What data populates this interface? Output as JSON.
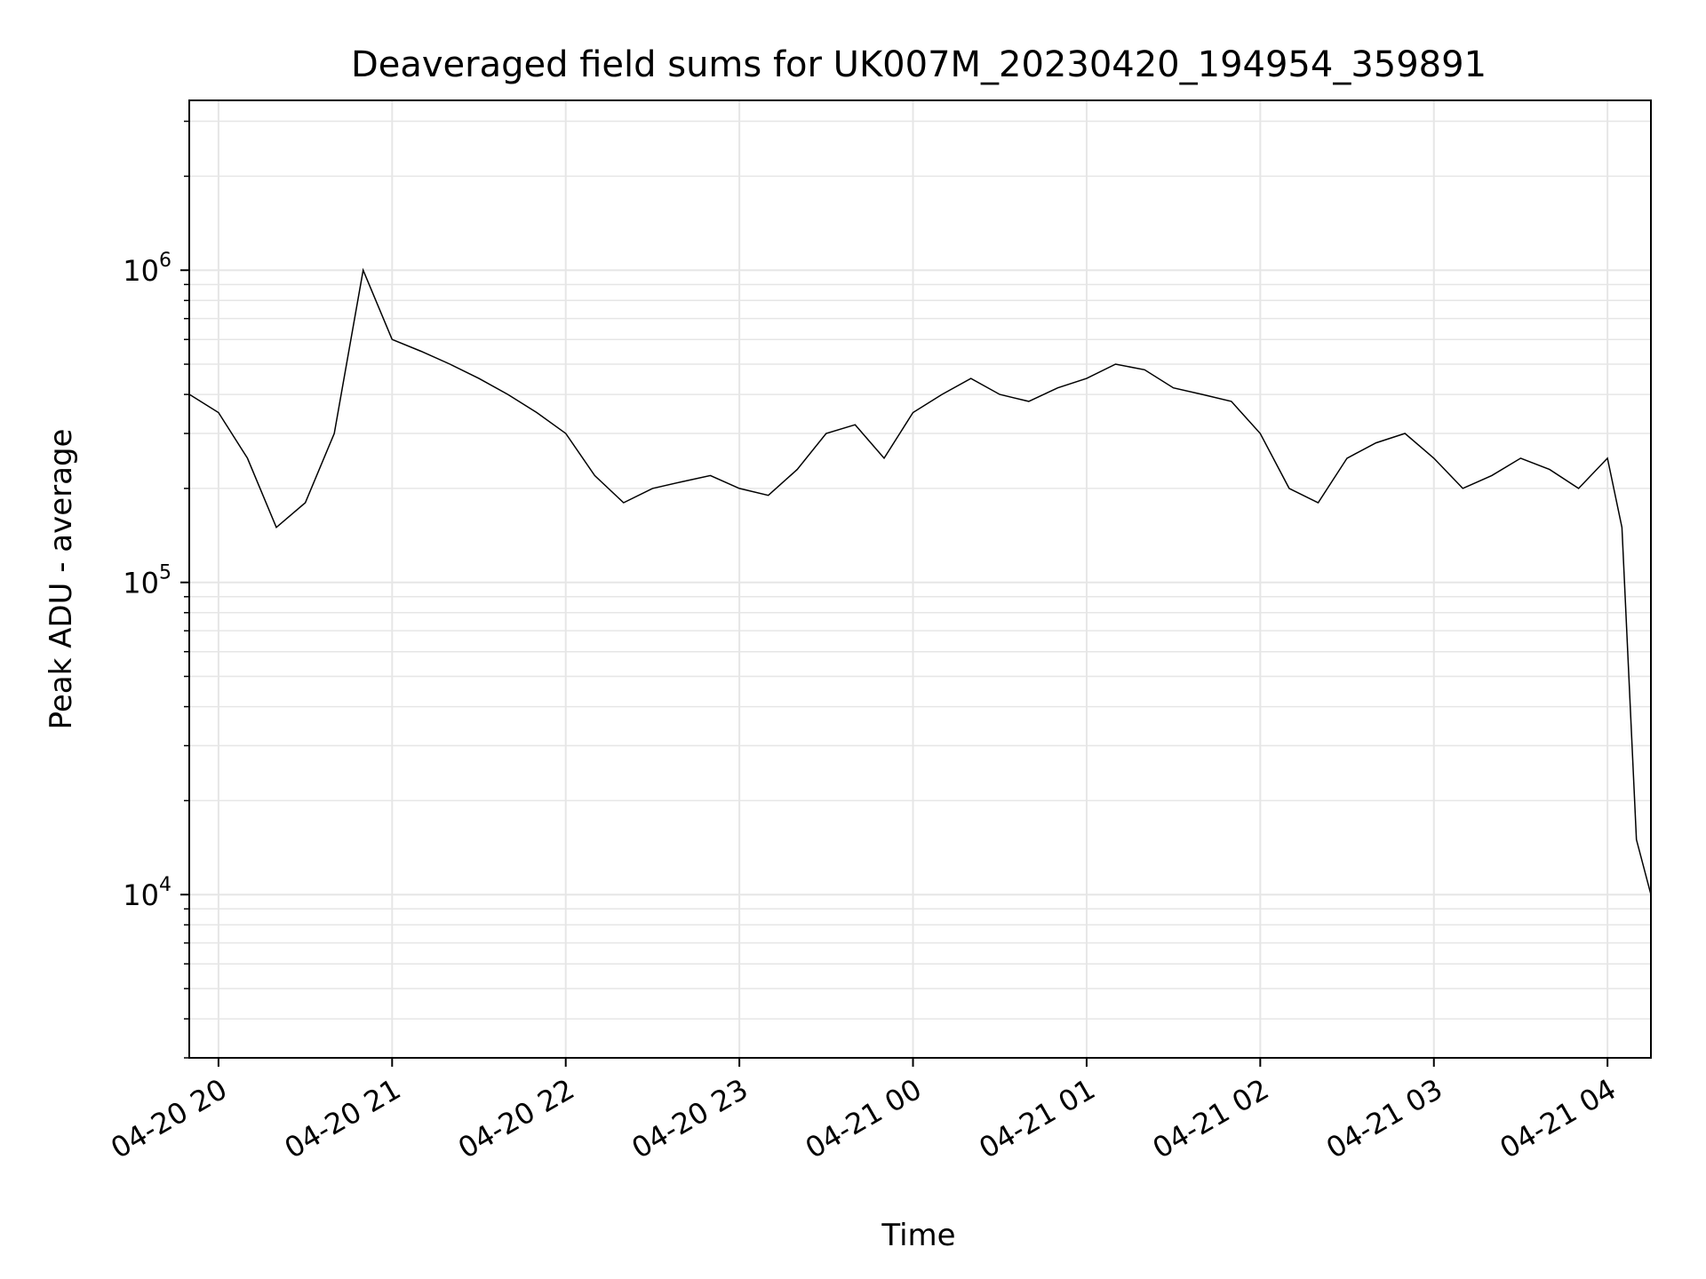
{
  "chart_data": {
    "type": "line",
    "title": "Deaveraged field sums for UK007M_20230420_194954_359891",
    "xlabel": "Time",
    "ylabel": "Peak ADU - average",
    "yscale": "log",
    "ylim": [
      3000,
      3500000
    ],
    "xlim": [
      "2023-04-20 19:49:54",
      "2023-04-21 04:15:00"
    ],
    "grid": true,
    "line_color": "#000000",
    "x_ticks": [
      {
        "time": "2023-04-20 20:00:00",
        "label": "04-20 20"
      },
      {
        "time": "2023-04-20 21:00:00",
        "label": "04-20 21"
      },
      {
        "time": "2023-04-20 22:00:00",
        "label": "04-20 22"
      },
      {
        "time": "2023-04-20 23:00:00",
        "label": "04-20 23"
      },
      {
        "time": "2023-04-21 00:00:00",
        "label": "04-21 00"
      },
      {
        "time": "2023-04-21 01:00:00",
        "label": "04-21 01"
      },
      {
        "time": "2023-04-21 02:00:00",
        "label": "04-21 02"
      },
      {
        "time": "2023-04-21 03:00:00",
        "label": "04-21 03"
      },
      {
        "time": "2023-04-21 04:00:00",
        "label": "04-21 04"
      }
    ],
    "y_ticks": [
      {
        "value": 10000,
        "base": "10",
        "exp": "4"
      },
      {
        "value": 100000,
        "base": "10",
        "exp": "5"
      },
      {
        "value": 1000000,
        "base": "10",
        "exp": "6"
      }
    ],
    "series": [
      {
        "x": [
          "2023-04-20 19:50:00",
          "2023-04-20 20:00:00",
          "2023-04-20 20:10:00",
          "2023-04-20 20:20:00",
          "2023-04-20 20:30:00",
          "2023-04-20 20:40:00",
          "2023-04-20 20:50:00",
          "2023-04-20 21:00:00",
          "2023-04-20 21:10:00",
          "2023-04-20 21:20:00",
          "2023-04-20 21:30:00",
          "2023-04-20 21:40:00",
          "2023-04-20 21:50:00",
          "2023-04-20 22:00:00",
          "2023-04-20 22:10:00",
          "2023-04-20 22:20:00",
          "2023-04-20 22:30:00",
          "2023-04-20 22:40:00",
          "2023-04-20 22:50:00",
          "2023-04-20 23:00:00",
          "2023-04-20 23:10:00",
          "2023-04-20 23:20:00",
          "2023-04-20 23:30:00",
          "2023-04-20 23:40:00",
          "2023-04-20 23:50:00",
          "2023-04-21 00:00:00",
          "2023-04-21 00:10:00",
          "2023-04-21 00:20:00",
          "2023-04-21 00:30:00",
          "2023-04-21 00:40:00",
          "2023-04-21 00:50:00",
          "2023-04-21 01:00:00",
          "2023-04-21 01:10:00",
          "2023-04-21 01:20:00",
          "2023-04-21 01:30:00",
          "2023-04-21 01:40:00",
          "2023-04-21 01:50:00",
          "2023-04-21 02:00:00",
          "2023-04-21 02:10:00",
          "2023-04-21 02:20:00",
          "2023-04-21 02:30:00",
          "2023-04-21 02:40:00",
          "2023-04-21 02:50:00",
          "2023-04-21 03:00:00",
          "2023-04-21 03:10:00",
          "2023-04-21 03:20:00",
          "2023-04-21 03:30:00",
          "2023-04-21 03:40:00",
          "2023-04-21 03:50:00",
          "2023-04-21 04:00:00",
          "2023-04-21 04:05:00",
          "2023-04-21 04:10:00",
          "2023-04-21 04:15:00"
        ],
        "y": [
          400000,
          350000,
          250000,
          150000,
          180000,
          300000,
          1000000,
          600000,
          550000,
          500000,
          450000,
          400000,
          350000,
          300000,
          220000,
          180000,
          200000,
          210000,
          220000,
          200000,
          190000,
          230000,
          300000,
          320000,
          250000,
          350000,
          400000,
          450000,
          400000,
          380000,
          420000,
          450000,
          500000,
          480000,
          420000,
          400000,
          380000,
          300000,
          200000,
          180000,
          250000,
          280000,
          300000,
          250000,
          200000,
          220000,
          250000,
          230000,
          200000,
          250000,
          150000,
          15000,
          10000
        ]
      }
    ]
  }
}
